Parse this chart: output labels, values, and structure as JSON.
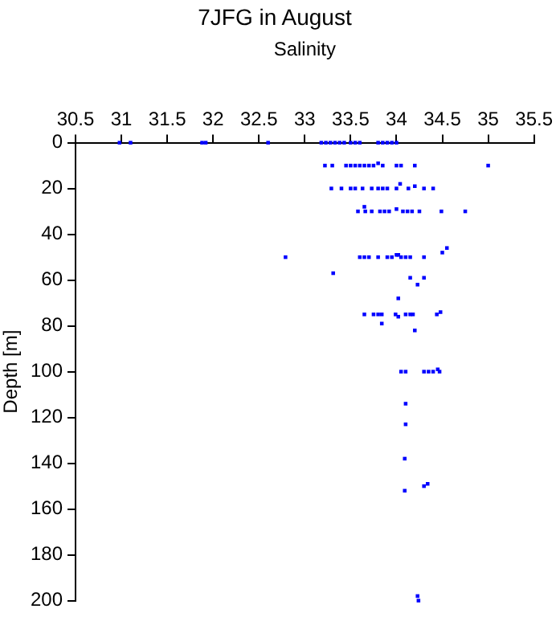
{
  "chart_data": {
    "type": "scatter",
    "title": "7JFG in August",
    "xlabel": "Salinity",
    "ylabel": "Depth [m]",
    "xlim": [
      30.5,
      35.5
    ],
    "xticks": [
      30.5,
      31,
      31.5,
      32,
      32.5,
      33,
      33.5,
      34,
      34.5,
      35,
      35.5
    ],
    "ylim": [
      200,
      0
    ],
    "yticks": [
      0,
      20,
      40,
      60,
      80,
      100,
      120,
      140,
      160,
      180,
      200
    ],
    "grid": false,
    "legend": false,
    "marker": "square",
    "series": [
      {
        "color": "#0000ff",
        "x": [
          30.98,
          31.1,
          31.88,
          31.92,
          32.6,
          33.18,
          33.23,
          33.28,
          33.33,
          33.38,
          33.43,
          33.5,
          33.55,
          33.6,
          33.8,
          33.85,
          33.9,
          33.95,
          34.0,
          33.22,
          33.3,
          33.45,
          33.5,
          33.55,
          33.6,
          33.65,
          33.7,
          33.75,
          33.85,
          34.0,
          34.05,
          34.2,
          35.0,
          33.8,
          33.29,
          33.4,
          33.5,
          33.55,
          33.63,
          33.73,
          33.8,
          33.85,
          33.9,
          34.0,
          34.13,
          34.3,
          34.4,
          34.04,
          34.2,
          33.58,
          33.66,
          33.73,
          33.82,
          33.87,
          33.92,
          34.07,
          34.12,
          34.17,
          34.25,
          34.49,
          34.75,
          34.0,
          33.65,
          32.79,
          33.6,
          33.65,
          33.7,
          33.8,
          33.9,
          33.95,
          34.05,
          34.1,
          34.15,
          34.3,
          34.0,
          34.02,
          34.5,
          34.55,
          33.31,
          34.15,
          34.3,
          34.23,
          34.02,
          33.65,
          33.75,
          33.8,
          33.84,
          33.99,
          34.1,
          34.15,
          34.18,
          34.44,
          34.48,
          34.02,
          33.84,
          34.2,
          34.05,
          34.1,
          34.3,
          34.35,
          34.4,
          34.47,
          34.45,
          34.1,
          34.1,
          34.09,
          34.3,
          34.34,
          34.09,
          34.23,
          34.24
        ],
        "values": [
          0,
          0,
          0,
          0,
          0,
          0,
          0,
          0,
          0,
          0,
          0,
          0,
          0,
          0,
          0,
          0,
          0,
          0,
          0,
          10,
          10,
          10,
          10,
          10,
          10,
          10,
          10,
          10,
          10,
          10,
          10,
          10,
          10,
          9,
          20,
          20,
          20,
          20,
          20,
          20,
          20,
          20,
          20,
          20,
          20,
          20,
          20,
          18,
          19,
          30,
          30,
          30,
          30,
          30,
          30,
          30,
          30,
          30,
          30,
          30,
          30,
          29,
          28,
          50,
          50,
          50,
          50,
          50,
          50,
          50,
          50,
          50,
          50,
          50,
          49,
          49,
          48,
          46,
          57,
          59,
          59,
          62,
          68,
          75,
          75,
          75,
          75,
          75,
          75,
          75,
          75,
          75,
          74,
          76,
          79,
          82,
          100,
          100,
          100,
          100,
          100,
          100,
          99,
          114,
          123,
          138,
          150,
          149,
          152,
          198,
          200
        ]
      }
    ]
  }
}
